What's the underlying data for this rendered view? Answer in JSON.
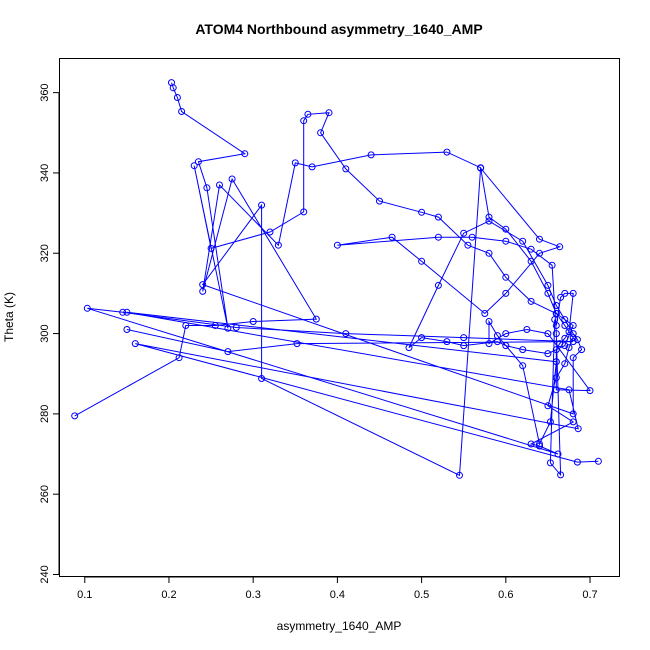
{
  "chart_data": {
    "type": "scatter",
    "title": "ATOM4 Northbound asymmetry_1640_AMP",
    "xlabel": "asymmetry_1640_AMP",
    "ylabel": "Theta (K)",
    "xlim": [
      0.07,
      0.735
    ],
    "ylim": [
      239.5,
      368.5
    ],
    "x_ticks": [
      0.1,
      0.2,
      0.3,
      0.4,
      0.5,
      0.6,
      0.7
    ],
    "x_tick_labels": [
      "0.1",
      "0.2",
      "0.3",
      "0.4",
      "0.5",
      "0.6",
      "0.7"
    ],
    "y_ticks": [
      240,
      260,
      280,
      300,
      320,
      340,
      360
    ],
    "y_tick_labels": [
      "240",
      "260",
      "280",
      "300",
      "320",
      "340",
      "360"
    ],
    "grid": false,
    "color": "#0000ff",
    "series": [
      {
        "points": [
          [
            0.203,
            362.5
          ],
          [
            0.205,
            361.2
          ],
          [
            0.21,
            358.8
          ],
          [
            0.215,
            355.3
          ],
          [
            0.29,
            344.8
          ],
          [
            0.235,
            342.8
          ],
          [
            0.245,
            336.3
          ],
          [
            0.27,
            301.3
          ],
          [
            0.23,
            341.8
          ],
          [
            0.25,
            321.2
          ],
          [
            0.32,
            325.3
          ],
          [
            0.36,
            330.3
          ],
          [
            0.36,
            353.0
          ],
          [
            0.365,
            354.6
          ],
          [
            0.39,
            355.0
          ],
          [
            0.38,
            350.0
          ],
          [
            0.41,
            341.0
          ],
          [
            0.45,
            333.0
          ],
          [
            0.5,
            330.2
          ],
          [
            0.52,
            329.0
          ],
          [
            0.555,
            322.0
          ],
          [
            0.58,
            320.0
          ],
          [
            0.6,
            314.0
          ],
          [
            0.63,
            308.0
          ],
          [
            0.66,
            305.0
          ],
          [
            0.68,
            302.0
          ],
          [
            0.67,
            297.0
          ],
          [
            0.65,
            295.0
          ],
          [
            0.62,
            296.0
          ],
          [
            0.6,
            297.0
          ],
          [
            0.59,
            298.0
          ],
          [
            0.55,
            297.0
          ],
          [
            0.53,
            298.0
          ],
          [
            0.5,
            299.0
          ],
          [
            0.485,
            296.5
          ],
          [
            0.52,
            312.0
          ],
          [
            0.55,
            325.0
          ],
          [
            0.58,
            328.0
          ],
          [
            0.62,
            323.0
          ],
          [
            0.65,
            312.0
          ],
          [
            0.66,
            307.0
          ],
          [
            0.67,
            303.5
          ],
          [
            0.68,
            300.0
          ],
          [
            0.685,
            298.5
          ],
          [
            0.69,
            296.0
          ],
          [
            0.68,
            294.0
          ],
          [
            0.68,
            280.0
          ],
          [
            0.24,
            312.2
          ],
          [
            0.31,
            332.0
          ],
          [
            0.31,
            288.8
          ],
          [
            0.545,
            264.7
          ],
          [
            0.57,
            341.2
          ],
          [
            0.64,
            323.5
          ],
          [
            0.664,
            321.6
          ],
          [
            0.64,
            320.0
          ],
          [
            0.6,
            310.0
          ],
          [
            0.575,
            305.0
          ],
          [
            0.5,
            318.0
          ],
          [
            0.465,
            324.0
          ],
          [
            0.4,
            322.0
          ],
          [
            0.52,
            324.0
          ],
          [
            0.56,
            324.0
          ],
          [
            0.6,
            323.0
          ],
          [
            0.63,
            321.0
          ],
          [
            0.655,
            317.0
          ],
          [
            0.66,
            300.0
          ],
          [
            0.665,
            264.8
          ],
          [
            0.653,
            267.8
          ],
          [
            0.658,
            303.5
          ],
          [
            0.66,
            302.0
          ],
          [
            0.665,
            309.0
          ],
          [
            0.67,
            310.0
          ],
          [
            0.68,
            310.0
          ],
          [
            0.675,
            300.5
          ],
          [
            0.67,
            298.8
          ],
          [
            0.664,
            297.5
          ],
          [
            0.66,
            296.0
          ],
          [
            0.66,
            293.0
          ],
          [
            0.66,
            286.0
          ],
          [
            0.7,
            285.8
          ],
          [
            0.65,
            300.0
          ],
          [
            0.625,
            301.0
          ],
          [
            0.6,
            300.0
          ],
          [
            0.58,
            297.5
          ],
          [
            0.58,
            303.0
          ],
          [
            0.59,
            299.5
          ],
          [
            0.62,
            292.0
          ],
          [
            0.64,
            272.5
          ],
          [
            0.653,
            278.0
          ],
          [
            0.66,
            293.0
          ],
          [
            0.15,
            305.3
          ],
          [
            0.675,
            286.0
          ],
          [
            0.686,
            276.3
          ],
          [
            0.16,
            297.5
          ],
          [
            0.685,
            268.0
          ],
          [
            0.71,
            268.2
          ]
        ]
      },
      {
        "points": [
          [
            0.088,
            279.5
          ],
          [
            0.212,
            294.0
          ],
          [
            0.22,
            302.0
          ],
          [
            0.255,
            302.0
          ],
          [
            0.3,
            303.0
          ],
          [
            0.375,
            303.6
          ],
          [
            0.275,
            338.5
          ],
          [
            0.24,
            310.5
          ],
          [
            0.26,
            337.0
          ],
          [
            0.33,
            322.0
          ],
          [
            0.35,
            342.5
          ],
          [
            0.37,
            341.5
          ],
          [
            0.44,
            344.5
          ],
          [
            0.53,
            345.2
          ],
          [
            0.57,
            341.3
          ],
          [
            0.58,
            329.0
          ],
          [
            0.6,
            326.0
          ],
          [
            0.63,
            318.0
          ],
          [
            0.65,
            310.0
          ],
          [
            0.66,
            305.0
          ],
          [
            0.67,
            302.0
          ],
          [
            0.68,
            299.0
          ],
          [
            0.675,
            296.5
          ],
          [
            0.67,
            292.5
          ],
          [
            0.66,
            289.0
          ],
          [
            0.65,
            282.0
          ],
          [
            0.68,
            278.0
          ],
          [
            0.63,
            272.5
          ],
          [
            0.64,
            272.0
          ],
          [
            0.662,
            270.0
          ],
          [
            0.103,
            306.3
          ],
          [
            0.145,
            305.3
          ],
          [
            0.28,
            301.5
          ],
          [
            0.41,
            300.0
          ],
          [
            0.55,
            299.0
          ],
          [
            0.68,
            298.0
          ],
          [
            0.352,
            297.5
          ],
          [
            0.27,
            295.5
          ],
          [
            0.15,
            301.0
          ]
        ]
      }
    ]
  }
}
